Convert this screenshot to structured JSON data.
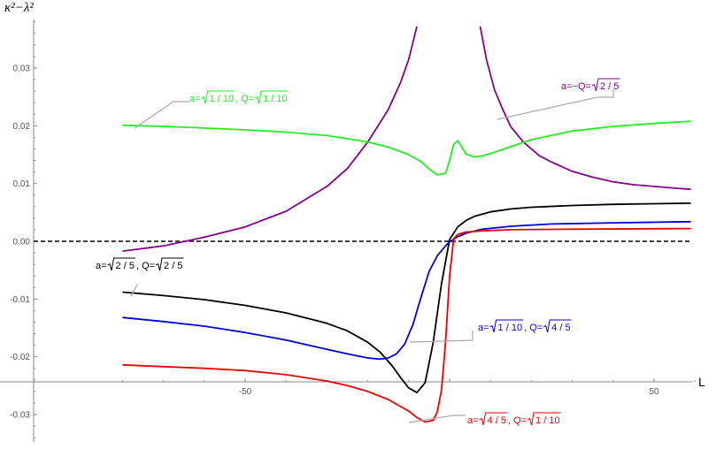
{
  "chart_data": {
    "type": "line",
    "xlabel": "L",
    "ylabel": "κ²−λ²",
    "xlim": [
      -80,
      60
    ],
    "ylim": [
      -0.035,
      0.038
    ],
    "x_ticks": [
      -50,
      50
    ],
    "y_ticks": [
      -0.03,
      -0.02,
      -0.01,
      0.0,
      0.01,
      0.02,
      0.03
    ],
    "y_tick_labels": [
      "-0.03",
      "-0.02",
      "-0.01",
      "0.00",
      "0.01",
      "0.02",
      "0.03"
    ],
    "x_tick_labels": [
      "-50",
      "50"
    ],
    "reference_line": {
      "y": 0,
      "style": "dashed",
      "color": "#000000"
    },
    "grid": false,
    "series": [
      {
        "name": "a=√(1/10), Q=√(1/10)",
        "color": "#22ee22",
        "x": [
          -80,
          -70,
          -60,
          -50,
          -40,
          -30,
          -20,
          -15,
          -10,
          -7,
          -5,
          -3,
          -1,
          0,
          1,
          2,
          3,
          4,
          6,
          8,
          10,
          15,
          20,
          30,
          40,
          50,
          59
        ],
        "y": [
          0.0201,
          0.0199,
          0.0196,
          0.0193,
          0.0189,
          0.0183,
          0.0172,
          0.0163,
          0.015,
          0.0138,
          0.0125,
          0.0115,
          0.0118,
          0.014,
          0.0168,
          0.0174,
          0.0163,
          0.0151,
          0.0146,
          0.0148,
          0.0152,
          0.0164,
          0.0176,
          0.0191,
          0.0199,
          0.0204,
          0.0208
        ]
      },
      {
        "name": "a=−Q=√(2/5)",
        "color": "#880088",
        "x": [
          -80,
          -70,
          -60,
          -50,
          -40,
          -30,
          -25,
          -20,
          -15,
          -12,
          -10,
          -8
        ],
        "y": [
          -0.0017,
          -0.0008,
          0.0007,
          0.0025,
          0.0052,
          0.0095,
          0.0126,
          0.0172,
          0.0228,
          0.0275,
          0.0315,
          0.0372
        ],
        "x2": [
          7.5,
          9,
          11,
          13,
          15,
          18,
          22,
          25,
          30,
          35,
          40,
          45,
          50,
          55,
          59
        ],
        "y2": [
          0.0372,
          0.0315,
          0.0262,
          0.0228,
          0.0198,
          0.0172,
          0.0148,
          0.0137,
          0.0121,
          0.0111,
          0.0103,
          0.0098,
          0.0095,
          0.0092,
          0.009
        ]
      },
      {
        "name": "a=√(2/5), Q=√(2/5)",
        "color": "#000000",
        "x": [
          -80,
          -70,
          -60,
          -50,
          -40,
          -30,
          -25,
          -20,
          -17,
          -14,
          -12,
          -10,
          -8,
          -6,
          -4,
          -2,
          0,
          2,
          4,
          6,
          10,
          15,
          20,
          30,
          40,
          50,
          59
        ],
        "y": [
          -0.0088,
          -0.0094,
          -0.0101,
          -0.0111,
          -0.0124,
          -0.0142,
          -0.0155,
          -0.0175,
          -0.0192,
          -0.0216,
          -0.0236,
          -0.0254,
          -0.0262,
          -0.0245,
          -0.0175,
          -0.0074,
          0.0003,
          0.0025,
          0.0036,
          0.0043,
          0.0051,
          0.0056,
          0.0059,
          0.0062,
          0.0064,
          0.0065,
          0.0066
        ]
      },
      {
        "name": "a=√(1/10), Q=√(4/5)",
        "color": "#0000dd",
        "x": [
          -80,
          -70,
          -60,
          -50,
          -40,
          -30,
          -25,
          -20,
          -17,
          -15,
          -13,
          -11,
          -9,
          -7,
          -5,
          -3,
          -1,
          0,
          2,
          4,
          8,
          15,
          25,
          40,
          59
        ],
        "y": [
          -0.0132,
          -0.0139,
          -0.0147,
          -0.0158,
          -0.0171,
          -0.0187,
          -0.0195,
          -0.0202,
          -0.0204,
          -0.0202,
          -0.0195,
          -0.0178,
          -0.0145,
          -0.0097,
          -0.0052,
          -0.0025,
          -0.0008,
          -0.0001,
          0.0008,
          0.0014,
          0.0021,
          0.0026,
          0.003,
          0.0032,
          0.0034
        ]
      },
      {
        "name": "a=√(4/5), Q=√(1/10)",
        "color": "#ee0000",
        "x": [
          -80,
          -70,
          -60,
          -50,
          -40,
          -30,
          -25,
          -20,
          -15,
          -10,
          -8,
          -6,
          -4,
          -3,
          -2,
          -1,
          0,
          1,
          2,
          4,
          8,
          15,
          30,
          59
        ],
        "y": [
          -0.0214,
          -0.0217,
          -0.022,
          -0.0224,
          -0.0231,
          -0.0242,
          -0.025,
          -0.026,
          -0.0274,
          -0.0294,
          -0.0305,
          -0.0313,
          -0.031,
          -0.0295,
          -0.0258,
          -0.0175,
          -0.006,
          0.0004,
          0.0012,
          0.0016,
          0.0018,
          0.002,
          0.0021,
          0.0022
        ]
      }
    ],
    "annotations": [
      {
        "series": 0,
        "parts": [
          {
            "t": "a=",
            "rad": false
          },
          {
            "t": "1 / 10",
            "rad": true
          },
          {
            "t": ", Q=",
            "rad": false
          },
          {
            "t": "1 / 10",
            "rad": true
          }
        ],
        "color": "#22ee22"
      },
      {
        "series": 1,
        "parts": [
          {
            "t": "a=−Q=",
            "rad": false
          },
          {
            "t": "2 / 5",
            "rad": true
          }
        ],
        "color": "#880088"
      },
      {
        "series": 2,
        "parts": [
          {
            "t": "a=",
            "rad": false
          },
          {
            "t": "2 / 5",
            "rad": true
          },
          {
            "t": ", Q=",
            "rad": false
          },
          {
            "t": "2 / 5",
            "rad": true
          }
        ],
        "color": "#000000"
      },
      {
        "series": 3,
        "parts": [
          {
            "t": "a=",
            "rad": false
          },
          {
            "t": "1 / 10",
            "rad": true
          },
          {
            "t": ", Q=",
            "rad": false
          },
          {
            "t": "4 / 5",
            "rad": true
          }
        ],
        "color": "#0000dd"
      },
      {
        "series": 4,
        "parts": [
          {
            "t": "a=",
            "rad": false
          },
          {
            "t": "4 / 5",
            "rad": true
          },
          {
            "t": ", Q=",
            "rad": false
          },
          {
            "t": "1 / 10",
            "rad": true
          }
        ],
        "color": "#ee0000"
      }
    ]
  }
}
